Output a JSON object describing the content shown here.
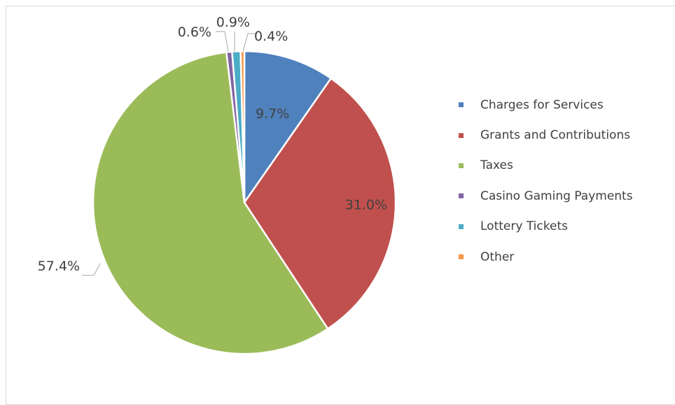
{
  "chart_data": {
    "type": "pie",
    "categories": [
      "Charges for Services",
      "Grants and Contributions",
      "Taxes",
      "Casino Gaming Payments",
      "Lottery Tickets",
      "Other"
    ],
    "values": [
      9.7,
      31.0,
      57.4,
      0.6,
      0.9,
      0.4
    ],
    "data_labels": [
      "9.7%",
      "31.0%",
      "57.4%",
      "0.6%",
      "0.9%",
      "0.4%"
    ],
    "colors": [
      "#4f81bd",
      "#c0504d",
      "#9bbb59",
      "#8064a2",
      "#4bacc6",
      "#f79646"
    ],
    "legend_position": "right",
    "title": "",
    "start_angle": "top, clockwise"
  },
  "legend": {
    "items": [
      {
        "label": "Charges for Services",
        "color": "#4f81bd"
      },
      {
        "label": "Grants and Contributions",
        "color": "#c0504d"
      },
      {
        "label": "Taxes",
        "color": "#9bbb59"
      },
      {
        "label": "Casino Gaming Payments",
        "color": "#8064a2"
      },
      {
        "label": "Lottery Tickets",
        "color": "#4bacc6"
      },
      {
        "label": "Other",
        "color": "#f79646"
      }
    ]
  }
}
